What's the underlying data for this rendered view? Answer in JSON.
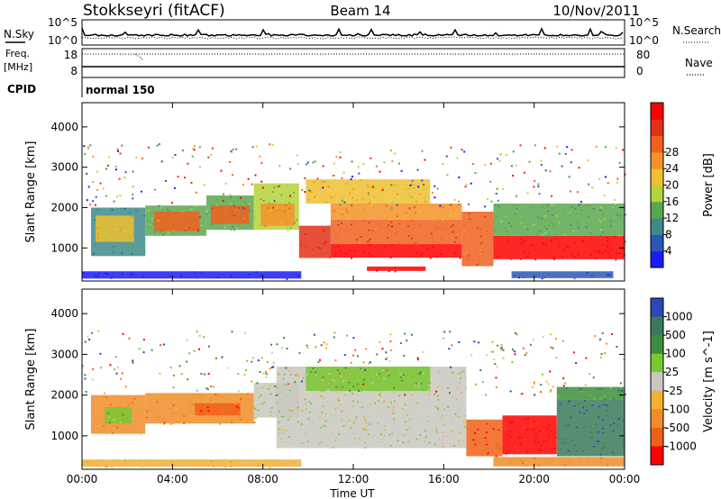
{
  "header": {
    "station": "Stokkseyri (fitACF)",
    "beam": "Beam 14",
    "date": "10/Nov/2011"
  },
  "top_panels": {
    "nsky_label": "N.Sky",
    "nsky_ticks": [
      "10^5",
      "10^0"
    ],
    "nsearch_label": "N.Search",
    "nsearch_ticks": [
      "10^5",
      "10^0"
    ],
    "freq_label_line1": "Freq.",
    "freq_label_line2": "[MHz]",
    "freq_ticks": [
      "18",
      "8"
    ],
    "nave_label": "Nave",
    "nave_ticks": [
      "80",
      "0"
    ],
    "cpid_label": "CPID",
    "cpid_value": "normal 150"
  },
  "chart_data": [
    {
      "type": "heatmap",
      "title": "",
      "xlabel": "",
      "ylabel": "Slant Range [km]",
      "x_ticks": [
        "00:00",
        "04:00",
        "08:00",
        "12:00",
        "16:00",
        "20:00",
        "00:00"
      ],
      "y_ticks": [
        1000,
        2000,
        3000,
        4000
      ],
      "xlim_hours_ut": [
        0,
        24
      ],
      "ylim_km": [
        180,
        4600
      ],
      "colorbar": {
        "label": "Power [dB]",
        "ticks": [
          "4",
          "8",
          "12",
          "16",
          "20",
          "24",
          "28"
        ],
        "colors": [
          "#1a1aff",
          "#2a56b8",
          "#3e8a8a",
          "#5aa84e",
          "#b4d43c",
          "#f0c030",
          "#f59228",
          "#f06020",
          "#e03018",
          "#ff0000"
        ]
      },
      "regions": [
        {
          "t0": 0.0,
          "t1": 9.7,
          "r0": 240,
          "r1": 420,
          "c": 0
        },
        {
          "t0": 0.4,
          "t1": 2.8,
          "r0": 800,
          "r1": 2000,
          "c": 2
        },
        {
          "t0": 0.6,
          "t1": 2.3,
          "r0": 1150,
          "r1": 1800,
          "c": 5
        },
        {
          "t0": 2.8,
          "t1": 5.5,
          "r0": 1300,
          "r1": 2050,
          "c": 3
        },
        {
          "t0": 3.2,
          "t1": 5.2,
          "r0": 1420,
          "r1": 1900,
          "c": 7
        },
        {
          "t0": 5.5,
          "t1": 7.6,
          "r0": 1450,
          "r1": 2300,
          "c": 3
        },
        {
          "t0": 5.7,
          "t1": 7.4,
          "r0": 1600,
          "r1": 2050,
          "c": 7
        },
        {
          "t0": 7.6,
          "t1": 9.6,
          "r0": 1450,
          "r1": 2600,
          "c": 4
        },
        {
          "t0": 7.9,
          "t1": 9.4,
          "r0": 1550,
          "r1": 2100,
          "c": 6
        },
        {
          "t0": 9.6,
          "t1": 11.0,
          "r0": 750,
          "r1": 1550,
          "c": 8
        },
        {
          "t0": 9.9,
          "t1": 15.4,
          "r0": 2100,
          "r1": 2700,
          "c": 5
        },
        {
          "t0": 11.0,
          "t1": 16.8,
          "r0": 760,
          "r1": 1100,
          "c": 9
        },
        {
          "t0": 11.0,
          "t1": 16.8,
          "r0": 1100,
          "r1": 1700,
          "c": 7
        },
        {
          "t0": 11.0,
          "t1": 16.8,
          "r0": 1700,
          "r1": 2100,
          "c": 6
        },
        {
          "t0": 12.6,
          "t1": 15.2,
          "r0": 430,
          "r1": 540,
          "c": 9
        },
        {
          "t0": 16.8,
          "t1": 18.2,
          "r0": 550,
          "r1": 1900,
          "c": 7
        },
        {
          "t0": 18.2,
          "t1": 24.0,
          "r0": 720,
          "r1": 1300,
          "c": 9
        },
        {
          "t0": 18.2,
          "t1": 24.0,
          "r0": 1300,
          "r1": 2100,
          "c": 3
        },
        {
          "t0": 19.0,
          "t1": 23.5,
          "r0": 250,
          "r1": 420,
          "c": 1
        }
      ]
    },
    {
      "type": "heatmap",
      "title": "",
      "xlabel": "Time UT",
      "ylabel": "Slant Range [km]",
      "x_ticks": [
        "00:00",
        "04:00",
        "08:00",
        "12:00",
        "16:00",
        "20:00",
        "00:00"
      ],
      "y_ticks": [
        1000,
        2000,
        3000,
        4000
      ],
      "xlim_hours_ut": [
        0,
        24
      ],
      "ylim_km": [
        180,
        4600
      ],
      "colorbar": {
        "label": "Velocity [m s^-1]",
        "ticks": [
          "1000",
          "500",
          "100",
          "25",
          "-25",
          "-100",
          "-500",
          "-1000"
        ],
        "colors": [
          "#2a48b8",
          "#3a7a5a",
          "#3c8e3c",
          "#7ac830",
          "#c8c8c0",
          "#f0b030",
          "#f08c28",
          "#f06018",
          "#ff0000"
        ]
      },
      "regions": [
        {
          "t0": 0.0,
          "t1": 9.7,
          "r0": 240,
          "r1": 420,
          "c": 5
        },
        {
          "t0": 0.4,
          "t1": 2.8,
          "r0": 1050,
          "r1": 2000,
          "c": 6
        },
        {
          "t0": 1.0,
          "t1": 2.2,
          "r0": 1300,
          "r1": 1700,
          "c": 3
        },
        {
          "t0": 2.8,
          "t1": 7.6,
          "r0": 1300,
          "r1": 2050,
          "c": 6
        },
        {
          "t0": 5.0,
          "t1": 7.0,
          "r0": 1500,
          "r1": 1800,
          "c": 7
        },
        {
          "t0": 7.6,
          "t1": 9.6,
          "r0": 1450,
          "r1": 2300,
          "c": 4
        },
        {
          "t0": 8.6,
          "t1": 17.0,
          "r0": 700,
          "r1": 2700,
          "c": 4
        },
        {
          "t0": 9.9,
          "t1": 15.4,
          "r0": 2100,
          "r1": 2700,
          "c": 3
        },
        {
          "t0": 17.0,
          "t1": 18.6,
          "r0": 500,
          "r1": 1400,
          "c": 7
        },
        {
          "t0": 18.6,
          "t1": 21.0,
          "r0": 550,
          "r1": 1500,
          "c": 8
        },
        {
          "t0": 21.0,
          "t1": 24.0,
          "r0": 500,
          "r1": 1900,
          "c": 1
        },
        {
          "t0": 21.0,
          "t1": 24.0,
          "r0": 1900,
          "r1": 2200,
          "c": 2
        },
        {
          "t0": 18.2,
          "t1": 24.0,
          "r0": 250,
          "r1": 480,
          "c": 6
        }
      ]
    }
  ]
}
